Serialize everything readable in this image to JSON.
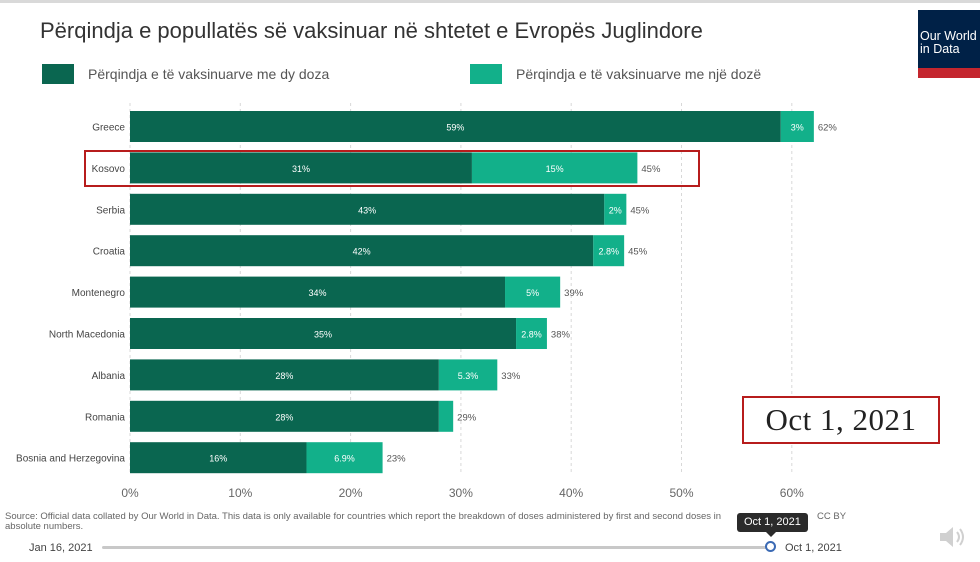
{
  "header": {
    "title": "Përqindja e popullatës së vaksinuar në shtetet e Evropës Juglindore",
    "logo": "Our World in Data"
  },
  "legend": {
    "two_doses": "Përqindja e të vaksinuarve me dy doza",
    "one_dose": "Përqindja e të vaksinuarve me një dozë"
  },
  "colors": {
    "two_doses": "#0a6650",
    "one_dose": "#12b08a",
    "highlight": "#b71c1c",
    "brand": "#002147",
    "brand_accent": "#c4262e"
  },
  "chart_data": {
    "type": "bar",
    "orientation": "horizontal",
    "stacked": true,
    "categories": [
      "Greece",
      "Kosovo",
      "Serbia",
      "Croatia",
      "Montenegro",
      "North Macedonia",
      "Albania",
      "Romania",
      "Bosnia and Herzegovina"
    ],
    "series": [
      {
        "name": "Përqindja e të vaksinuarve me dy doza",
        "values": [
          59,
          31,
          43,
          42,
          34,
          35,
          28,
          28,
          16
        ],
        "labels": [
          "59%",
          "31%",
          "43%",
          "42%",
          "34%",
          "35%",
          "28%",
          "28%",
          "16%"
        ]
      },
      {
        "name": "Përqindja e të vaksinuarve me një dozë",
        "values": [
          3,
          15,
          2,
          2.8,
          5,
          2.8,
          5.3,
          1.3,
          6.9
        ],
        "labels": [
          "3%",
          "15%",
          "2%",
          "2.8%",
          "5%",
          "2.8%",
          "5.3%",
          "",
          "6.9%"
        ]
      }
    ],
    "totals": [
      "62%",
      "45%",
      "45%",
      "45%",
      "39%",
      "38%",
      "33%",
      "29%",
      "23%"
    ],
    "xlim": [
      0,
      60
    ],
    "xticks": [
      0,
      10,
      20,
      30,
      40,
      50,
      60
    ],
    "xtick_labels": [
      "0%",
      "10%",
      "20%",
      "30%",
      "40%",
      "50%",
      "60%"
    ],
    "grid": true,
    "highlighted_category": "Kosovo"
  },
  "annotation": {
    "date": "Oct 1, 2021"
  },
  "footer": {
    "source": "Source: Official data collated by Our World in Data. This data is only available for countries which report the breakdown of doses administered by first and second doses in absolute numbers.",
    "license": "CC BY"
  },
  "timeline": {
    "start": "Jan 16, 2021",
    "end": "Oct 1, 2021",
    "tooltip": "Oct 1, 2021",
    "position": 1.0
  },
  "icons": {
    "speaker": "speaker-icon"
  }
}
